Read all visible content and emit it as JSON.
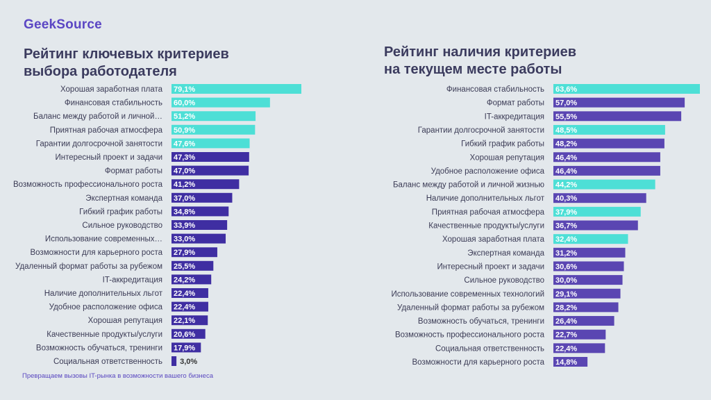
{
  "logo": "GeekSource",
  "footer": "Превращаем вызовы IT-рынка в возможности вашего бизнеса",
  "colors": {
    "highlight": "#4ddfd6",
    "left_bar": "#3f2ea2",
    "right_bar": "#5a46b2",
    "background": "#e3e8ec"
  },
  "chart_data": [
    {
      "type": "bar",
      "orientation": "horizontal",
      "title_line1": "Рейтинг ключевых критериев",
      "title_line2": "выбора работодателя",
      "categories": [
        "Хорошая заработная плата",
        "Финансовая стабильность",
        "Баланс между работой и личной…",
        "Приятная рабочая атмосфера",
        "Гарантии долгосрочной занятости",
        "Интересный проект и задачи",
        "Формат работы",
        "Возможность профессионального роста",
        "Экспертная команда",
        "Гибкий график работы",
        "Сильное руководство",
        "Использование современных…",
        "Возможности для карьерного роста",
        "Удаленный формат работы за рубежом",
        "IT-аккредитация",
        "Наличие дополнительных льгот",
        "Удобное расположение офиса",
        "Хорошая репутация",
        "Качественные продукты/услуги",
        "Возможность обучаться, тренинги",
        "Социальная ответственность"
      ],
      "values": [
        79.1,
        60.0,
        51.2,
        50.9,
        47.6,
        47.3,
        47.0,
        41.2,
        37.0,
        34.8,
        33.9,
        33.0,
        27.9,
        25.5,
        24.2,
        22.4,
        22.4,
        22.1,
        20.6,
        17.9,
        3.0
      ],
      "labels": [
        "79,1%",
        "60,0%",
        "51,2%",
        "50,9%",
        "47,6%",
        "47,3%",
        "47,0%",
        "41,2%",
        "37,0%",
        "34,8%",
        "33,9%",
        "33,0%",
        "27,9%",
        "25,5%",
        "24,2%",
        "22,4%",
        "22,4%",
        "22,1%",
        "20,6%",
        "17,9%",
        "3,0%"
      ],
      "highlighted": [
        true,
        true,
        true,
        true,
        true,
        false,
        false,
        false,
        false,
        false,
        false,
        false,
        false,
        false,
        false,
        false,
        false,
        false,
        false,
        false,
        false
      ]
    },
    {
      "type": "bar",
      "orientation": "horizontal",
      "title_line1": "Рейтинг наличия критериев",
      "title_line2": "на текущем месте работы",
      "categories": [
        "Финансовая стабильность",
        "Формат работы",
        "IT-аккредитация",
        "Гарантии долгосрочной занятости",
        "Гибкий график работы",
        "Хорошая репутация",
        "Удобное расположение офиса",
        "Баланс между работой и личной жизнью",
        "Наличие дополнительных льгот",
        "Приятная рабочая атмосфера",
        "Качественные продукты/услуги",
        "Хорошая заработная плата",
        "Экспертная команда",
        "Интересный проект и задачи",
        "Сильное руководство",
        "Использование современных технологий",
        "Удаленный формат работы за рубежом",
        "Возможность обучаться, тренинги",
        "Возможность профессионального роста",
        "Социальная ответственность",
        "Возможности для карьерного роста"
      ],
      "values": [
        63.6,
        57.0,
        55.5,
        48.5,
        48.2,
        46.4,
        46.4,
        44.2,
        40.3,
        37.9,
        36.7,
        32.4,
        31.2,
        30.6,
        30.0,
        29.1,
        28.2,
        26.4,
        22.7,
        22.4,
        14.8
      ],
      "labels": [
        "63,6%",
        "57,0%",
        "55,5%",
        "48,5%",
        "48,2%",
        "46,4%",
        "46,4%",
        "44,2%",
        "40,3%",
        "37,9%",
        "36,7%",
        "32,4%",
        "31,2%",
        "30,6%",
        "30,0%",
        "29,1%",
        "28,2%",
        "26,4%",
        "22,7%",
        "22,4%",
        "14,8%"
      ],
      "highlighted": [
        true,
        false,
        false,
        true,
        false,
        false,
        false,
        true,
        false,
        true,
        false,
        true,
        false,
        false,
        false,
        false,
        false,
        false,
        false,
        false,
        false
      ]
    }
  ]
}
